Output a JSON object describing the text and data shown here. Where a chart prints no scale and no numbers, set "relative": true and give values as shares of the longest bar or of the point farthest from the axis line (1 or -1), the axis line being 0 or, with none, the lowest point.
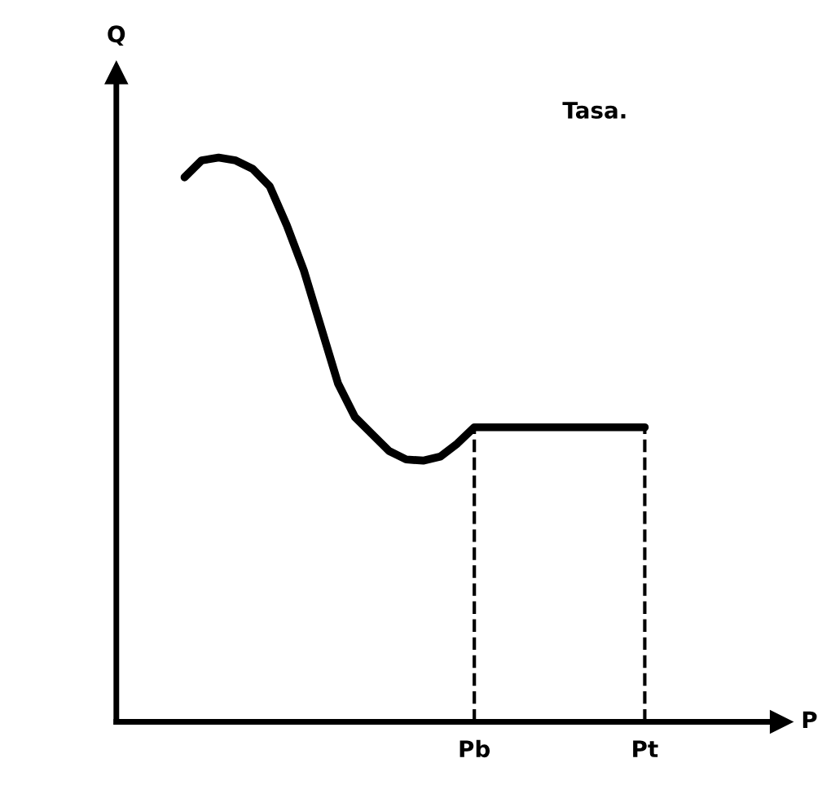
{
  "chart_data": {
    "type": "line",
    "relative": true,
    "ylabel": "Q",
    "xlabel": "P",
    "annotations": [
      "Tasa."
    ],
    "categories": [
      null,
      null,
      null,
      null,
      null,
      null,
      null,
      null,
      null,
      null,
      null,
      null,
      null,
      null,
      null,
      null,
      null,
      null,
      null,
      null,
      null,
      "Pb",
      null,
      null,
      null,
      null,
      null,
      null,
      null,
      null,
      null,
      "Pt",
      null,
      null,
      null,
      null,
      null,
      null,
      null,
      null
    ],
    "ref_lines": [
      {
        "axis": "x",
        "value": "Pb",
        "line_style": "dashed",
        "color": "#000000"
      },
      {
        "axis": "x",
        "value": "Pt",
        "line_style": "dashed",
        "color": "#000000"
      }
    ],
    "series": [
      {
        "color": "#000000",
        "values": [
          null,
          null,
          null,
          null,
          0.965,
          0.995,
          1.0,
          0.995,
          0.98,
          0.949,
          0.88,
          0.8,
          0.7,
          0.6,
          0.54,
          0.51,
          0.48,
          0.465,
          0.463,
          0.47,
          0.493,
          0.522,
          0.522,
          0.522,
          0.522,
          0.522,
          0.522,
          0.522,
          0.522,
          0.522,
          0.522,
          0.522,
          null,
          null,
          null,
          null,
          null,
          null,
          null,
          null
        ]
      }
    ],
    "grid": false,
    "legend": false,
    "marker": "none",
    "line_style": "solid"
  }
}
